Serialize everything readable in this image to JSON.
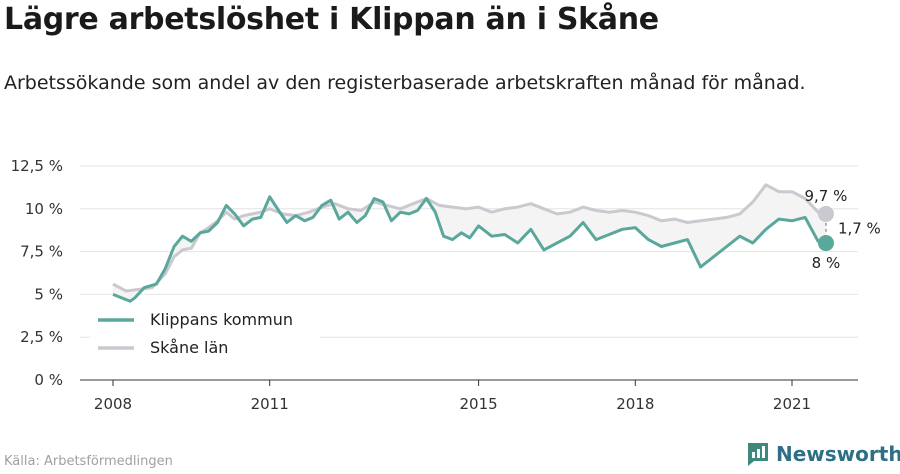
{
  "title": "Lägre arbetslöshet i Klippan än i Skåne",
  "subtitle": "Arbetssökande som andel av den registerbaserade arbetskraften månad för månad.",
  "source": "Källa: Arbetsförmedlingen",
  "brand": "Newsworthy",
  "colors": {
    "klippan": "#5aa79b",
    "skane": "#c9c9cf",
    "fill": "#f4f4f5",
    "grid": "#e4e4e4",
    "brand": "#2f6f86"
  },
  "chart_data": {
    "type": "line",
    "title": "Lägre arbetslöshet i Klippan än i Skåne",
    "xlabel": "",
    "ylabel": "",
    "xlim": [
      2008,
      2022.5
    ],
    "ylim": [
      0,
      12.5
    ],
    "x_ticks": [
      {
        "value": 2008,
        "label": "2008"
      },
      {
        "value": 2011,
        "label": "2011"
      },
      {
        "value": 2015,
        "label": "2015"
      },
      {
        "value": 2018,
        "label": "2018"
      },
      {
        "value": 2021,
        "label": "2021"
      }
    ],
    "y_ticks": [
      {
        "value": 0,
        "label": "0 %"
      },
      {
        "value": 2.5,
        "label": "2,5 %"
      },
      {
        "value": 5,
        "label": "5 %"
      },
      {
        "value": 7.5,
        "label": "7,5 %"
      },
      {
        "value": 10,
        "label": "10 %"
      },
      {
        "value": 12.5,
        "label": "12,5 %"
      }
    ],
    "grid": true,
    "legend_position": "bottom-left",
    "series": [
      {
        "name": "Klippans kommun",
        "color": "#5aa79b",
        "x": [
          2008.0,
          2008.33,
          2008.42,
          2008.6,
          2008.83,
          2009.0,
          2009.17,
          2009.33,
          2009.5,
          2009.67,
          2009.83,
          2010.0,
          2010.17,
          2010.33,
          2010.5,
          2010.67,
          2010.83,
          2011.0,
          2011.17,
          2011.33,
          2011.5,
          2011.67,
          2011.83,
          2012.0,
          2012.17,
          2012.33,
          2012.5,
          2012.67,
          2012.83,
          2013.0,
          2013.17,
          2013.33,
          2013.5,
          2013.67,
          2013.83,
          2014.0,
          2014.17,
          2014.33,
          2014.5,
          2014.67,
          2014.83,
          2015.0,
          2015.25,
          2015.5,
          2015.75,
          2016.0,
          2016.25,
          2016.5,
          2016.75,
          2017.0,
          2017.25,
          2017.5,
          2017.75,
          2018.0,
          2018.25,
          2018.5,
          2018.75,
          2019.0,
          2019.25,
          2019.5,
          2019.75,
          2020.0,
          2020.25,
          2020.5,
          2020.75,
          2021.0,
          2021.25,
          2021.5,
          2021.65
        ],
        "y": [
          5.0,
          4.6,
          4.8,
          5.4,
          5.6,
          6.5,
          7.8,
          8.4,
          8.1,
          8.6,
          8.7,
          9.2,
          10.2,
          9.7,
          9.0,
          9.4,
          9.5,
          10.7,
          9.9,
          9.2,
          9.6,
          9.3,
          9.5,
          10.2,
          10.5,
          9.4,
          9.8,
          9.2,
          9.6,
          10.6,
          10.4,
          9.3,
          9.8,
          9.7,
          9.9,
          10.6,
          9.8,
          8.4,
          8.2,
          8.6,
          8.3,
          9.0,
          8.4,
          8.5,
          8.0,
          8.8,
          7.6,
          8.0,
          8.4,
          9.2,
          8.2,
          8.5,
          8.8,
          8.9,
          8.2,
          7.8,
          8.0,
          8.2,
          6.6,
          7.2,
          7.8,
          8.4,
          8.0,
          8.8,
          9.4,
          9.3,
          9.5,
          8.1,
          8.0
        ]
      },
      {
        "name": "Skåne län",
        "color": "#c9c9cf",
        "x": [
          2008.0,
          2008.25,
          2008.5,
          2008.75,
          2009.0,
          2009.17,
          2009.33,
          2009.5,
          2009.67,
          2009.83,
          2010.0,
          2010.17,
          2010.33,
          2010.5,
          2010.67,
          2010.83,
          2011.0,
          2011.25,
          2011.5,
          2011.75,
          2012.0,
          2012.25,
          2012.5,
          2012.75,
          2013.0,
          2013.25,
          2013.5,
          2013.75,
          2014.0,
          2014.25,
          2014.5,
          2014.75,
          2015.0,
          2015.25,
          2015.5,
          2015.75,
          2016.0,
          2016.25,
          2016.5,
          2016.75,
          2017.0,
          2017.25,
          2017.5,
          2017.75,
          2018.0,
          2018.25,
          2018.5,
          2018.75,
          2019.0,
          2019.25,
          2019.5,
          2019.75,
          2020.0,
          2020.25,
          2020.5,
          2020.75,
          2021.0,
          2021.25,
          2021.5,
          2021.65
        ],
        "y": [
          5.6,
          5.2,
          5.3,
          5.4,
          6.2,
          7.2,
          7.6,
          7.7,
          8.6,
          8.9,
          9.3,
          9.8,
          9.4,
          9.6,
          9.7,
          9.8,
          10.0,
          9.7,
          9.6,
          9.8,
          10.1,
          10.3,
          10.0,
          9.9,
          10.4,
          10.2,
          10.0,
          10.3,
          10.6,
          10.2,
          10.1,
          10.0,
          10.1,
          9.8,
          10.0,
          10.1,
          10.3,
          10.0,
          9.7,
          9.8,
          10.1,
          9.9,
          9.8,
          9.9,
          9.8,
          9.6,
          9.3,
          9.4,
          9.2,
          9.3,
          9.4,
          9.5,
          9.7,
          10.4,
          11.4,
          11.0,
          11.0,
          10.6,
          9.8,
          9.7
        ]
      }
    ],
    "annotations": [
      {
        "text": "9,7 %",
        "series": "Skåne län"
      },
      {
        "text": "8 %",
        "series": "Klippans kommun"
      },
      {
        "text": "1,7 %",
        "note": "difference"
      }
    ]
  }
}
